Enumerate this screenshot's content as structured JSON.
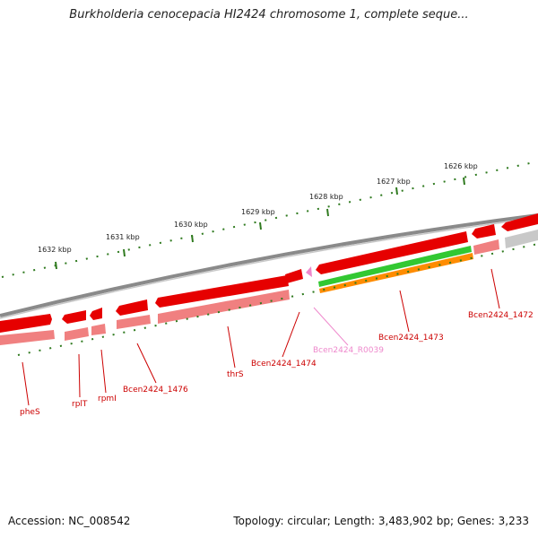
{
  "title": "Burkholderia cenocepacia HI2424 chromosome 1, complete seque...",
  "accession": "Accession: NC_008542",
  "topology": "Topology: circular; Length: 3,483,902 bp; Genes: 3,233",
  "scale_labels": [
    "1632 kbp",
    "1631 kbp",
    "1630 kbp",
    "1629 kbp",
    "1628 kbp",
    "1627 kbp",
    "1626 kbp"
  ],
  "gene_labels": [
    "pheS",
    "rplT",
    "rpmI",
    "Bcen2424_1476",
    "thrS",
    "Bcen2424_1474",
    "Bcen2424_R0039",
    "Bcen2424_1473",
    "Bcen2424_1472"
  ],
  "colors": {
    "backbone": "#8a8a8a",
    "cds": "#ff0000",
    "gene": "#f08080",
    "rrna_gene": "#32c832",
    "rrna": "#ff8c00",
    "ticks": "#2f7a1f",
    "label_red": "#cc0000",
    "label_pink": "#ee88cc"
  }
}
